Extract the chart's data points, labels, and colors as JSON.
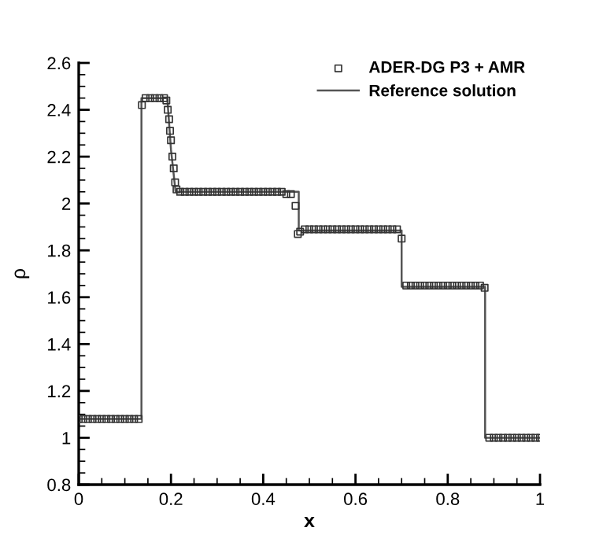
{
  "chart_data": {
    "type": "line",
    "xlabel": "x",
    "ylabel": "ρ",
    "xlim": [
      0,
      1
    ],
    "ylim": [
      0.8,
      2.6
    ],
    "xticks": [
      0,
      0.2,
      0.4,
      0.6,
      0.8,
      1
    ],
    "yticks": [
      0.8,
      1,
      1.2,
      1.4,
      1.6,
      1.8,
      2,
      2.2,
      2.4,
      2.6
    ],
    "grid": false,
    "legend": "top right",
    "series": [
      {
        "name": "ADER-DG P3 + AMR",
        "type": "scatter",
        "marker": "square",
        "color": "#333333",
        "x": [
          0,
          0.01,
          0.02,
          0.03,
          0.04,
          0.05,
          0.06,
          0.07,
          0.08,
          0.09,
          0.1,
          0.11,
          0.12,
          0.13,
          0.137,
          0.145,
          0.155,
          0.165,
          0.175,
          0.185,
          0.19,
          0.193,
          0.196,
          0.198,
          0.2,
          0.203,
          0.206,
          0.209,
          0.212,
          0.22,
          0.23,
          0.24,
          0.25,
          0.26,
          0.27,
          0.28,
          0.29,
          0.3,
          0.31,
          0.32,
          0.33,
          0.34,
          0.35,
          0.36,
          0.37,
          0.38,
          0.39,
          0.4,
          0.41,
          0.42,
          0.43,
          0.44,
          0.45,
          0.46,
          0.47,
          0.475,
          0.48,
          0.49,
          0.5,
          0.51,
          0.52,
          0.53,
          0.54,
          0.55,
          0.56,
          0.57,
          0.58,
          0.59,
          0.6,
          0.61,
          0.62,
          0.63,
          0.64,
          0.65,
          0.66,
          0.67,
          0.68,
          0.69,
          0.7,
          0.71,
          0.72,
          0.73,
          0.74,
          0.75,
          0.76,
          0.77,
          0.78,
          0.79,
          0.8,
          0.81,
          0.82,
          0.83,
          0.84,
          0.85,
          0.86,
          0.87,
          0.88,
          0.89,
          0.9,
          0.91,
          0.92,
          0.93,
          0.94,
          0.95,
          0.96,
          0.97,
          0.98,
          0.99,
          1
        ],
        "values": [
          1.08,
          1.08,
          1.08,
          1.08,
          1.08,
          1.08,
          1.08,
          1.08,
          1.08,
          1.08,
          1.08,
          1.08,
          1.08,
          1.08,
          2.42,
          2.45,
          2.45,
          2.45,
          2.45,
          2.45,
          2.44,
          2.4,
          2.36,
          2.31,
          2.27,
          2.2,
          2.15,
          2.09,
          2.06,
          2.05,
          2.05,
          2.05,
          2.05,
          2.05,
          2.05,
          2.05,
          2.05,
          2.05,
          2.05,
          2.05,
          2.05,
          2.05,
          2.05,
          2.05,
          2.05,
          2.05,
          2.05,
          2.05,
          2.05,
          2.05,
          2.05,
          2.05,
          2.04,
          2.04,
          1.99,
          1.87,
          1.88,
          1.89,
          1.89,
          1.89,
          1.89,
          1.89,
          1.89,
          1.89,
          1.89,
          1.89,
          1.89,
          1.89,
          1.89,
          1.89,
          1.89,
          1.89,
          1.89,
          1.89,
          1.89,
          1.89,
          1.89,
          1.89,
          1.85,
          1.65,
          1.65,
          1.65,
          1.65,
          1.65,
          1.65,
          1.65,
          1.65,
          1.65,
          1.65,
          1.65,
          1.65,
          1.65,
          1.65,
          1.65,
          1.65,
          1.65,
          1.64,
          1,
          1,
          1,
          1,
          1,
          1,
          1,
          1,
          1,
          1,
          1,
          1
        ]
      },
      {
        "name": "Reference solution",
        "color": "#555555",
        "x": [
          0,
          0.136,
          0.136,
          0.192,
          0.2,
          0.21,
          0.477,
          0.477,
          0.7,
          0.7,
          0.881,
          0.881,
          1
        ],
        "values": [
          1.08,
          1.08,
          2.45,
          2.45,
          2.23,
          2.05,
          2.05,
          1.885,
          1.885,
          1.645,
          1.645,
          1,
          1
        ]
      }
    ]
  }
}
